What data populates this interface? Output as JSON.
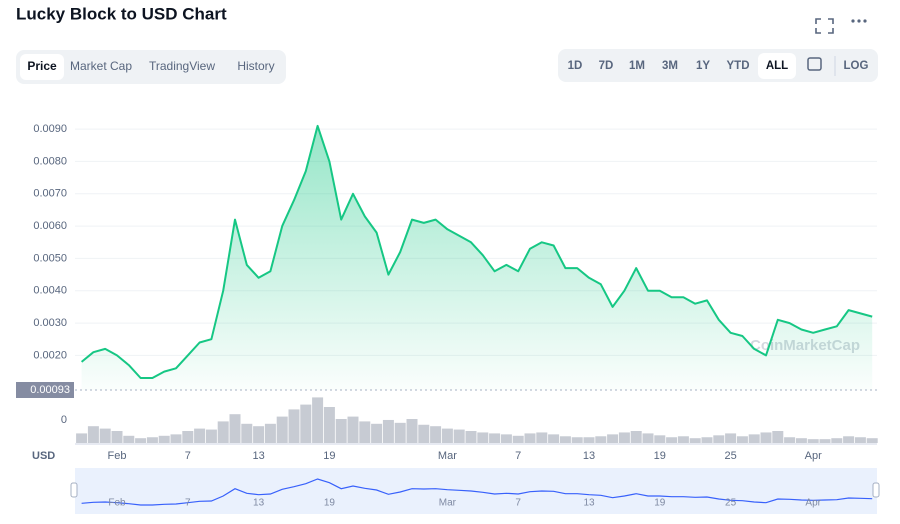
{
  "chart_data": {
    "type": "area",
    "title": "Lucky Block to USD Chart",
    "tabs": [
      "Price",
      "Market Cap",
      "TradingView",
      "History"
    ],
    "ranges": [
      "1D",
      "7D",
      "1M",
      "3M",
      "1Y",
      "YTD",
      "ALL"
    ],
    "log_label": "LOG",
    "currency": "USD",
    "watermark": "CoinMarketCap",
    "color": "#16c784",
    "navigator_color": "#3861fb",
    "volume_color": "#c7cbd3",
    "categories": [
      null,
      null,
      null,
      "Feb",
      null,
      null,
      null,
      null,
      null,
      "7",
      null,
      null,
      null,
      null,
      null,
      "13",
      null,
      null,
      null,
      null,
      null,
      "19",
      null,
      null,
      null,
      null,
      null,
      null,
      null,
      null,
      null,
      "Mar",
      null,
      null,
      null,
      null,
      null,
      "7",
      null,
      null,
      null,
      null,
      null,
      "13",
      null,
      null,
      null,
      null,
      null,
      "19",
      null,
      null,
      null,
      null,
      null,
      "25",
      null,
      null,
      null,
      null,
      null,
      null,
      "Apr",
      null,
      null,
      null,
      null,
      null
    ],
    "values": [
      0.0018,
      0.0021,
      0.0022,
      0.002,
      0.0017,
      0.0013,
      0.0013,
      0.0015,
      0.0016,
      0.002,
      0.0024,
      0.0025,
      0.004,
      0.0062,
      0.0048,
      0.0044,
      0.0046,
      0.006,
      0.0068,
      0.0077,
      0.0091,
      0.008,
      0.0062,
      0.007,
      0.0063,
      0.0058,
      0.0045,
      0.0052,
      0.0062,
      0.0061,
      0.0062,
      0.0059,
      0.0057,
      0.0055,
      0.0051,
      0.0046,
      0.0048,
      0.0046,
      0.0053,
      0.0055,
      0.0054,
      0.0047,
      0.0047,
      0.0044,
      0.0042,
      0.0035,
      0.004,
      0.0047,
      0.004,
      0.004,
      0.0038,
      0.0038,
      0.0036,
      0.0037,
      0.0031,
      0.0027,
      0.0026,
      0.0022,
      0.002,
      0.0031,
      0.003,
      0.0028,
      0.0027,
      0.0028,
      0.0029,
      0.0034,
      0.0033,
      0.0032
    ],
    "volume": [
      20,
      35,
      30,
      25,
      15,
      10,
      12,
      15,
      18,
      25,
      30,
      28,
      45,
      60,
      40,
      35,
      40,
      55,
      70,
      80,
      95,
      75,
      50,
      55,
      45,
      40,
      48,
      42,
      50,
      38,
      35,
      30,
      28,
      25,
      22,
      20,
      18,
      15,
      20,
      22,
      18,
      14,
      12,
      12,
      14,
      18,
      22,
      25,
      20,
      16,
      12,
      14,
      10,
      12,
      16,
      20,
      14,
      18,
      22,
      25,
      12,
      10,
      8,
      8,
      10,
      14,
      12,
      10
    ],
    "ylim": [
      0.00093,
      0.0099
    ],
    "yticks": [
      {
        "value": 0.002,
        "label": "0.0020"
      },
      {
        "value": 0.003,
        "label": "0.0030"
      },
      {
        "value": 0.004,
        "label": "0.0040"
      },
      {
        "value": 0.005,
        "label": "0.0050"
      },
      {
        "value": 0.006,
        "label": "0.0060"
      },
      {
        "value": 0.007,
        "label": "0.0070"
      },
      {
        "value": 0.008,
        "label": "0.0080"
      },
      {
        "value": 0.009,
        "label": "0.0090"
      }
    ],
    "baseline": 0.00093,
    "volume_ylim": [
      0,
      100
    ],
    "volume_yticks": [
      0
    ],
    "grid": true
  }
}
